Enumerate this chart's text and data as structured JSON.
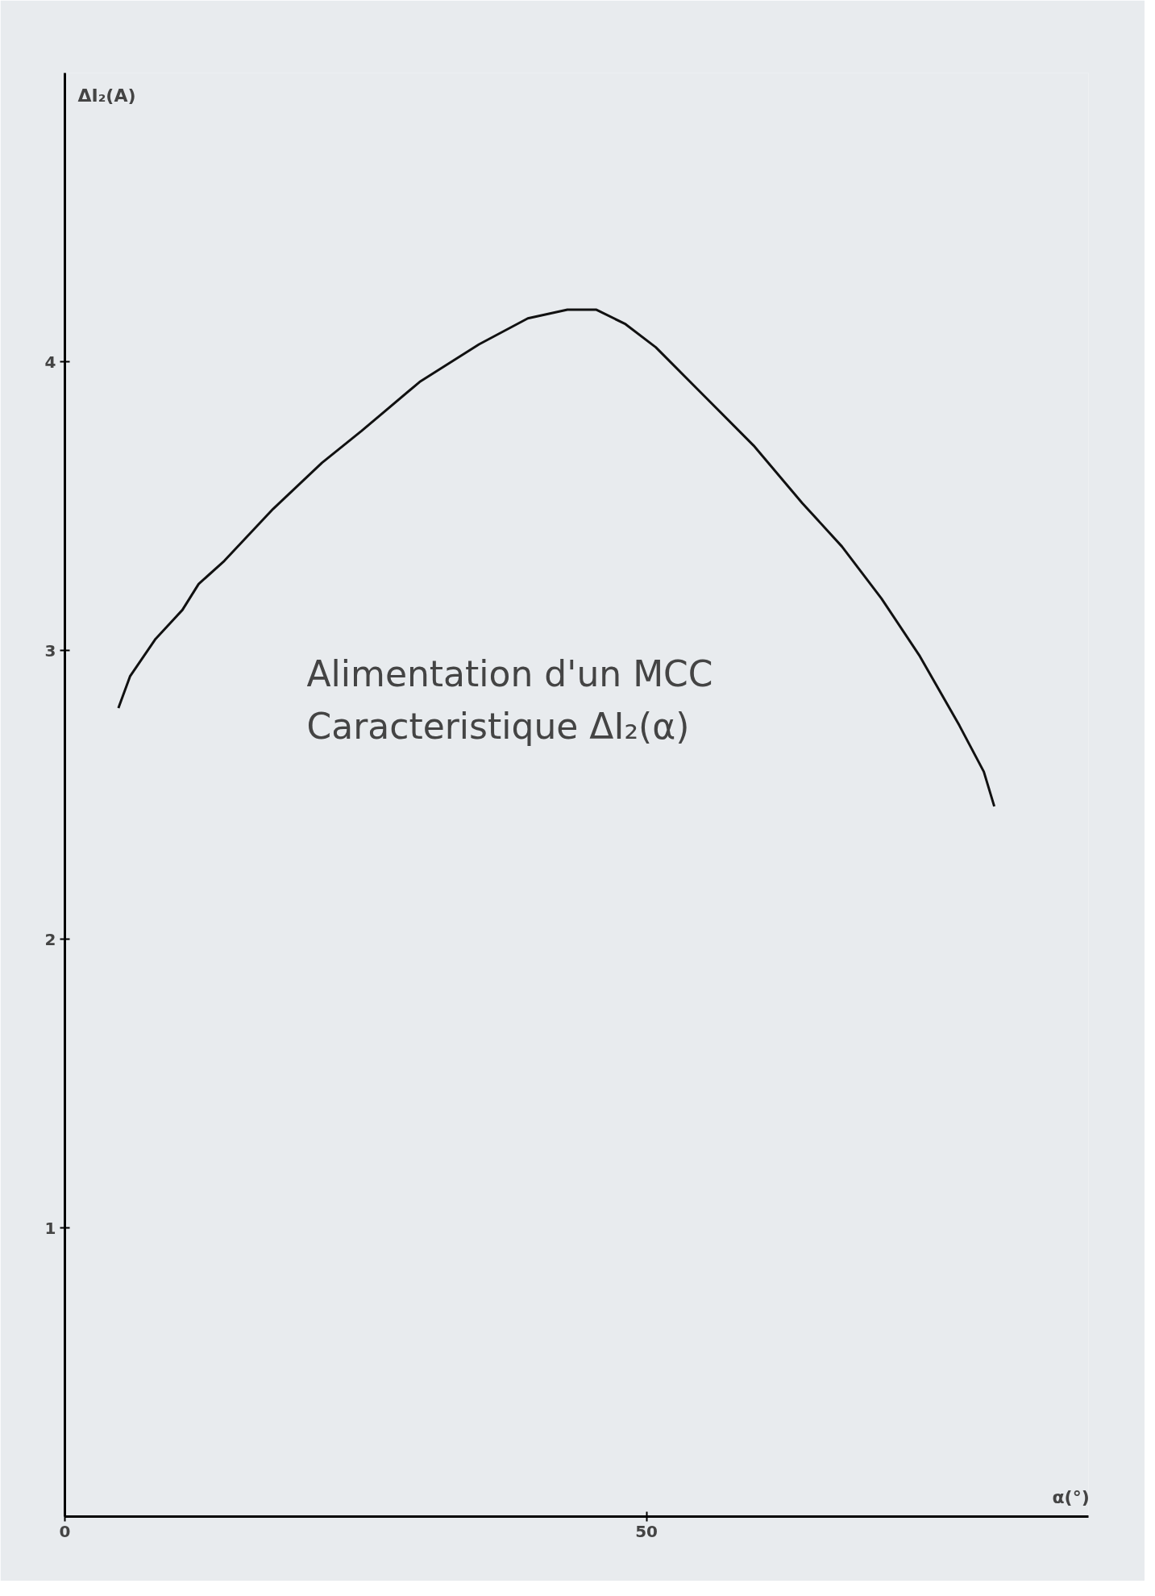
{
  "chart_data": {
    "type": "line",
    "xlabel": "α(°)",
    "ylabel": "ΔI₂(A)",
    "annotations": [
      "Alimentation d'un MCC",
      "Caracteristique   ΔI₂(α)"
    ],
    "x": [
      4.6,
      5.6,
      7.8,
      10.1,
      11.5,
      13.7,
      17.9,
      22.1,
      25.5,
      30.5,
      35.6,
      39.8,
      43.2,
      45.7,
      48.2,
      50.8,
      55.0,
      59.2,
      63.4,
      66.8,
      70.2,
      73.5,
      76.9,
      79.0,
      79.9
    ],
    "series": [
      {
        "color": "#111111",
        "values": [
          2.8,
          2.91,
          3.04,
          3.14,
          3.23,
          3.31,
          3.49,
          3.65,
          3.76,
          3.93,
          4.06,
          4.15,
          4.18,
          4.18,
          4.13,
          4.05,
          3.88,
          3.71,
          3.51,
          3.36,
          3.18,
          2.98,
          2.74,
          2.58,
          2.46
        ]
      }
    ],
    "xlim": [
      0,
      88
    ],
    "ylim": [
      0,
      5
    ],
    "xticks": [
      0,
      50
    ],
    "yticks": [
      1,
      2,
      3,
      4
    ],
    "grid": false,
    "marker": "none",
    "line_style": "solid"
  }
}
